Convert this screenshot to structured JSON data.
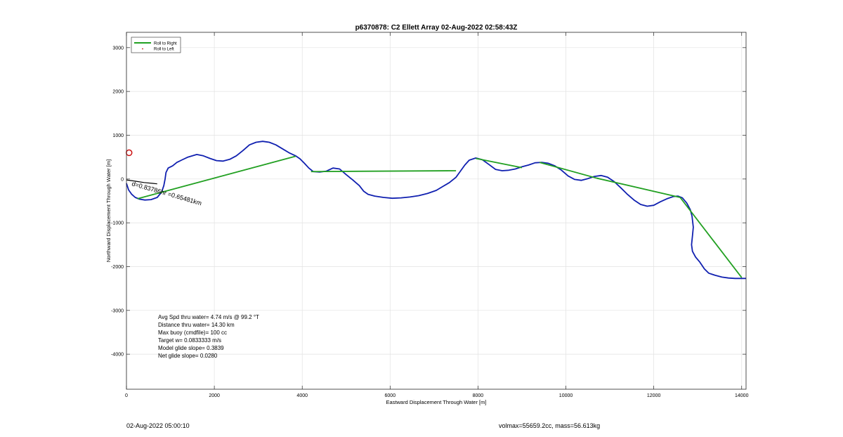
{
  "chart_data": {
    "type": "line",
    "title": "p6370878: C2 Ellett Array 02-Aug-2022 02:58:43Z",
    "xlabel": "Eastward Displacement Through Water [m]",
    "ylabel": "Northward Displacement Through Water [m]",
    "xlim": [
      0,
      14100
    ],
    "ylim": [
      -4800,
      3350
    ],
    "xticks": [
      0,
      2000,
      4000,
      6000,
      8000,
      10000,
      12000,
      14000
    ],
    "yticks": [
      -4000,
      -3000,
      -2000,
      -1000,
      0,
      1000,
      2000,
      3000
    ],
    "grid": true,
    "legend": {
      "placement": "top-left",
      "entries": [
        "Roll to Right",
        "Roll to Left"
      ]
    },
    "colors": {
      "roll_right": "#22a022",
      "track": "#1020b0",
      "marker": "#cc1111",
      "grid": "#e2e2e2"
    },
    "series": [
      {
        "name": "Roll to Right",
        "style": "line",
        "segments": [
          [
            [
              250,
              -450
            ],
            [
              3850,
              520
            ]
          ],
          [
            [
              4200,
              170
            ],
            [
              7500,
              190
            ]
          ],
          [
            [
              7950,
              470
            ],
            [
              9000,
              260
            ]
          ],
          [
            [
              9400,
              380
            ],
            [
              10700,
              20
            ]
          ],
          [
            [
              10700,
              20
            ],
            [
              12600,
              -420
            ]
          ],
          [
            [
              12600,
              -420
            ],
            [
              14000,
              -2250
            ]
          ]
        ]
      },
      {
        "name": "track",
        "style": "line",
        "x": [
          0,
          50,
          120,
          200,
          300,
          420,
          560,
          700,
          800,
          850,
          880,
          900,
          950,
          1050,
          1150,
          1250,
          1400,
          1600,
          1750,
          1900,
          2050,
          2200,
          2350,
          2500,
          2650,
          2800,
          2950,
          3100,
          3250,
          3400,
          3550,
          3700,
          3850,
          3950,
          4050,
          4150,
          4250,
          4400,
          4550,
          4700,
          4850,
          5000,
          5150,
          5300,
          5400,
          5500,
          5650,
          5850,
          6050,
          6250,
          6450,
          6650,
          6850,
          7050,
          7200,
          7350,
          7500,
          7600,
          7700,
          7800,
          7950,
          8100,
          8250,
          8400,
          8550,
          8700,
          8850,
          9000,
          9150,
          9300,
          9450,
          9600,
          9750,
          9900,
          10050,
          10200,
          10350,
          10500,
          10650,
          10800,
          10950,
          11100,
          11250,
          11400,
          11550,
          11700,
          11850,
          12000,
          12150,
          12300,
          12450,
          12550,
          12650,
          12750,
          12830,
          12870,
          12900,
          12880,
          12860,
          12880,
          12950,
          13050,
          13150,
          13250,
          13400,
          13550,
          13700,
          13850,
          14000,
          14100
        ],
        "y": [
          -100,
          -250,
          -350,
          -420,
          -460,
          -480,
          -470,
          -420,
          -300,
          -150,
          0,
          150,
          250,
          300,
          380,
          430,
          500,
          560,
          530,
          470,
          420,
          410,
          450,
          530,
          650,
          780,
          840,
          860,
          840,
          780,
          690,
          600,
          530,
          460,
          360,
          250,
          170,
          160,
          180,
          250,
          230,
          100,
          -20,
          -150,
          -280,
          -350,
          -390,
          -420,
          -440,
          -430,
          -410,
          -380,
          -330,
          -260,
          -170,
          -80,
          40,
          180,
          320,
          430,
          480,
          440,
          330,
          220,
          190,
          200,
          230,
          280,
          320,
          370,
          380,
          360,
          300,
          200,
          70,
          -10,
          -30,
          10,
          60,
          80,
          40,
          -60,
          -200,
          -350,
          -480,
          -580,
          -620,
          -600,
          -520,
          -450,
          -400,
          -390,
          -430,
          -550,
          -700,
          -850,
          -1100,
          -1300,
          -1500,
          -1650,
          -1780,
          -1900,
          -2050,
          -2150,
          -2200,
          -2240,
          -2260,
          -2270,
          -2270,
          -2270
        ]
      },
      {
        "name": "heading",
        "style": "line",
        "x": [
          0,
          200,
          400,
          600,
          700
        ],
        "y": [
          -20,
          -50,
          -80,
          -100,
          -110
        ]
      },
      {
        "name": "marker",
        "style": "marker",
        "x": [
          60
        ],
        "y": [
          600
        ]
      }
    ],
    "annotations": {
      "track_label": "d=0.83786hr =0.65481km",
      "start_label": "",
      "stats": [
        "Avg Spd thru water=  4.74 m/s @  99.2 °T",
        "Distance thru water= 14.30 km",
        "Max buoy (cmdfile)= 100 cc",
        "Target w= 0.0833333 m/s",
        "Model glide slope= 0.3839",
        "Net glide slope= 0.0280"
      ]
    }
  },
  "footer": {
    "left": "02-Aug-2022 05:00:10",
    "right": "volmax=55659.2cc, mass=56.613kg"
  }
}
